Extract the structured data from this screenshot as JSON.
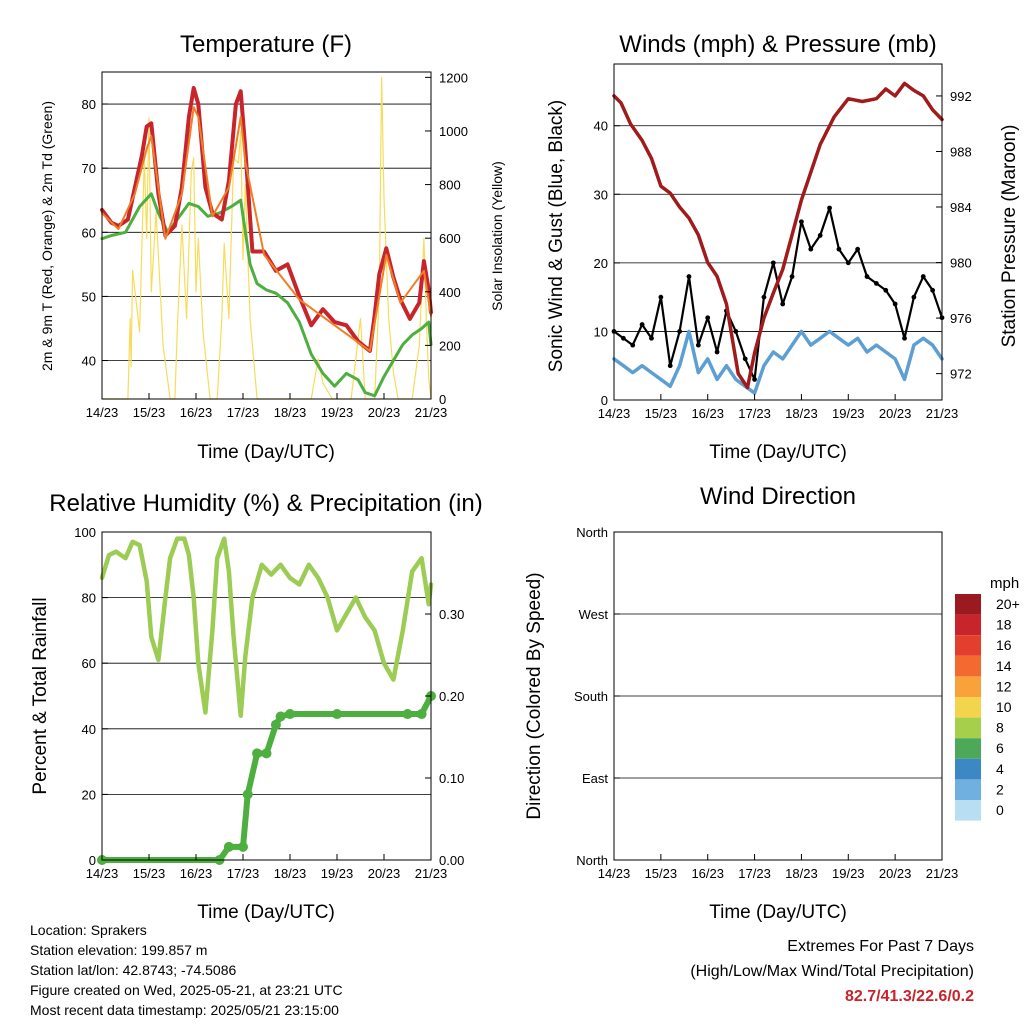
{
  "colors": {
    "temp_2m": "#c8242b",
    "temp_9m": "#f07e26",
    "dewpoint": "#4caf3f",
    "solar": "#f7dc5a",
    "wind": "#5d9fd3",
    "gust": "#000000",
    "pressure": "#a01c1c",
    "rh": "#9ccc54",
    "precip": "#4caf3f",
    "extremes_value": "#c8242b"
  },
  "info": {
    "location": "Location: Sprakers",
    "elevation": "Station elevation: 199.857 m",
    "latlon": "Station lat/lon: 42.8743; -74.5086",
    "created": "Figure created on Wed, 2025-05-21, at 23:21 UTC",
    "recent": "Most recent data timestamp: 2025/05/21 23:15:00"
  },
  "extremes": {
    "title": "Extremes For Past 7 Days",
    "subtitle": "(High/Low/Max Wind/Total Precipitation)",
    "values": "82.7/41.3/22.6/0.2"
  },
  "chart_data": [
    {
      "id": "temperature",
      "type": "line",
      "title": "Temperature (F)",
      "xlabel": "Time (Day/UTC)",
      "ylabel": "2m & 9m T (Red, Orange) & 2m Td (Green)",
      "ylabel_right": "Solar Insolation (Yellow)",
      "x_ticks": [
        "14/23",
        "15/23",
        "16/23",
        "17/23",
        "18/23",
        "19/23",
        "20/23",
        "21/23"
      ],
      "xlim": [
        0,
        7
      ],
      "ylim": [
        34,
        85
      ],
      "y_ticks": [
        40,
        50,
        60,
        70,
        80
      ],
      "y2lim": [
        0,
        1220
      ],
      "y2_ticks": [
        0,
        200,
        400,
        600,
        800,
        1000,
        1200
      ],
      "grid": "horizontal",
      "series": [
        {
          "key": "temp_2m",
          "x": [
            0,
            0.2,
            0.35,
            0.55,
            0.7,
            0.85,
            0.95,
            1.05,
            1.2,
            1.35,
            1.55,
            1.7,
            1.85,
            1.95,
            2.05,
            2.2,
            2.35,
            2.55,
            2.7,
            2.85,
            2.95,
            3.05,
            3.2,
            3.45,
            3.7,
            3.95,
            4.2,
            4.45,
            4.7,
            4.95,
            5.2,
            5.45,
            5.7,
            5.8,
            5.9,
            6.05,
            6.2,
            6.35,
            6.55,
            6.75,
            6.85,
            6.95,
            7
          ],
          "y": [
            63.5,
            61.5,
            61,
            62,
            67,
            72,
            76.5,
            77,
            66,
            59.5,
            61,
            67,
            78,
            82.5,
            80,
            67,
            63,
            62,
            68,
            80,
            82,
            73,
            57,
            57,
            54,
            55,
            50,
            45.5,
            48,
            46,
            45.5,
            43,
            41.5,
            47,
            53.5,
            57.5,
            53,
            49.5,
            46.5,
            49,
            55.5,
            51,
            47.5
          ]
        },
        {
          "key": "temp_9m",
          "x": [
            0,
            0.35,
            0.7,
            0.95,
            1.05,
            1.35,
            1.7,
            1.95,
            2.05,
            2.35,
            2.7,
            2.95,
            3.05,
            3.45,
            4.2,
            4.95,
            5.7,
            6.05,
            6.35,
            6.85,
            7
          ],
          "y": [
            63,
            60.5,
            66,
            73,
            75,
            59,
            66,
            79.5,
            78,
            62.5,
            67,
            78,
            71,
            56.5,
            49.5,
            45.5,
            41.5,
            56.5,
            49,
            54,
            47
          ]
        },
        {
          "key": "dewpoint",
          "x": [
            0,
            0.2,
            0.5,
            0.8,
            1.05,
            1.2,
            1.4,
            1.6,
            1.85,
            2.05,
            2.25,
            2.5,
            2.75,
            2.95,
            3.15,
            3.3,
            3.5,
            3.7,
            3.95,
            4.2,
            4.45,
            4.7,
            4.95,
            5.2,
            5.45,
            5.6,
            5.8,
            6,
            6.2,
            6.4,
            6.6,
            6.8,
            6.95,
            7
          ],
          "y": [
            59,
            59.5,
            60,
            64,
            66,
            63,
            60,
            62,
            64.5,
            64,
            62.5,
            63,
            64,
            65,
            55,
            52,
            51,
            50.5,
            49,
            46,
            41,
            38,
            36,
            38,
            37,
            35,
            34.5,
            37.5,
            40,
            42.5,
            44,
            45,
            46,
            42.5
          ]
        },
        {
          "key": "solar",
          "x": [
            0,
            0.55,
            0.6,
            0.62,
            0.65,
            0.8,
            0.9,
            0.95,
            1.0,
            1.05,
            1.15,
            1.3,
            1.45,
            1.55,
            1.6,
            1.7,
            1.8,
            1.9,
            1.95,
            2.0,
            2.05,
            2.15,
            2.3,
            2.45,
            2.55,
            2.6,
            2.7,
            2.8,
            2.9,
            2.95,
            3.0,
            3.05,
            3.15,
            3.3,
            3.45,
            4.45,
            4.6,
            4.7,
            4.9,
            5.1,
            5.3,
            5.5,
            5.6,
            5.8,
            5.9,
            5.95,
            6.0,
            6.1,
            6.2,
            6.3,
            6.6,
            6.75,
            6.85,
            6.9,
            6.95,
            7
          ],
          "y": [
            0,
            0,
            300,
            120,
            480,
            250,
            900,
            600,
            1050,
            400,
            700,
            200,
            0,
            0,
            250,
            650,
            300,
            850,
            900,
            400,
            600,
            250,
            0,
            0,
            300,
            580,
            300,
            900,
            880,
            1000,
            520,
            800,
            300,
            0,
            0,
            0,
            150,
            60,
            0,
            0,
            0,
            300,
            0,
            0,
            400,
            1200,
            750,
            300,
            100,
            0,
            0,
            200,
            600,
            300,
            80,
            0
          ]
        }
      ]
    },
    {
      "id": "winds",
      "type": "line",
      "title": "Winds (mph) & Pressure (mb)",
      "xlabel": "Time (Day/UTC)",
      "ylabel": "Sonic Wind & Gust (Blue, Black)",
      "ylabel_right": "Station Pressure (Maroon)",
      "x_ticks": [
        "14/23",
        "15/23",
        "16/23",
        "17/23",
        "18/23",
        "19/23",
        "20/23",
        "21/23"
      ],
      "xlim": [
        0,
        7
      ],
      "ylim": [
        0,
        49
      ],
      "y_ticks": [
        0,
        10,
        20,
        30,
        40
      ],
      "y2lim": [
        970.1,
        994.3
      ],
      "y2_ticks": [
        972,
        976,
        980,
        984,
        988,
        992
      ],
      "grid": "horizontal",
      "series": [
        {
          "key": "pressure",
          "x": [
            0,
            0.15,
            0.35,
            0.6,
            0.8,
            1,
            1.2,
            1.4,
            1.6,
            1.8,
            2,
            2.2,
            2.4,
            2.55,
            2.65,
            2.75,
            2.85,
            3,
            3.2,
            3.4,
            3.6,
            3.8,
            4,
            4.2,
            4.4,
            4.7,
            5,
            5.3,
            5.6,
            5.8,
            6,
            6.2,
            6.4,
            6.6,
            6.8,
            7
          ],
          "y": [
            992,
            991.5,
            990,
            988.8,
            987.5,
            985.5,
            985,
            984,
            983.2,
            982,
            980,
            979,
            977,
            974,
            972,
            971.5,
            971,
            973.5,
            976,
            977.8,
            979.5,
            982,
            984.5,
            986.5,
            988.5,
            990.5,
            991.8,
            991.6,
            991.8,
            992.5,
            992,
            992.9,
            992.4,
            992,
            991,
            990.3
          ]
        },
        {
          "key": "wind",
          "x": [
            0,
            0.2,
            0.4,
            0.6,
            0.8,
            1,
            1.2,
            1.4,
            1.6,
            1.8,
            2,
            2.2,
            2.4,
            2.6,
            2.8,
            3,
            3.2,
            3.4,
            3.6,
            3.8,
            4,
            4.2,
            4.4,
            4.6,
            4.8,
            5,
            5.2,
            5.4,
            5.6,
            5.8,
            6,
            6.2,
            6.4,
            6.6,
            6.8,
            7
          ],
          "y": [
            6,
            5,
            4,
            5,
            4,
            3,
            2,
            5,
            10,
            4,
            6,
            3,
            5,
            3,
            2,
            1,
            5,
            7,
            6,
            8,
            10,
            8,
            9,
            10,
            9,
            8,
            9,
            7,
            8,
            7,
            6,
            3,
            8,
            9,
            8,
            6
          ]
        },
        {
          "key": "gust",
          "x": [
            0,
            0.2,
            0.4,
            0.6,
            0.8,
            1,
            1.2,
            1.4,
            1.6,
            1.8,
            2,
            2.2,
            2.4,
            2.6,
            2.8,
            3,
            3.2,
            3.4,
            3.6,
            3.8,
            4,
            4.2,
            4.4,
            4.6,
            4.8,
            5,
            5.2,
            5.4,
            5.6,
            5.8,
            6,
            6.2,
            6.4,
            6.6,
            6.8,
            7
          ],
          "y": [
            10,
            9,
            8,
            11,
            9,
            15,
            5,
            10,
            18,
            8,
            12,
            7,
            13,
            10,
            6,
            3,
            15,
            20,
            14,
            18,
            26,
            22,
            24,
            28,
            22,
            20,
            22,
            18,
            17,
            16,
            14,
            9,
            15,
            18,
            16,
            12
          ]
        }
      ]
    },
    {
      "id": "humidity",
      "type": "line",
      "title": "Relative Humidity (%) & Precipitation (in)",
      "xlabel": "Time (Day/UTC)",
      "ylabel": "Percent & Total Rainfall",
      "x_ticks": [
        "14/23",
        "15/23",
        "16/23",
        "17/23",
        "18/23",
        "19/23",
        "20/23",
        "21/23"
      ],
      "xlim": [
        0,
        7
      ],
      "ylim": [
        0,
        100
      ],
      "y_ticks": [
        0,
        20,
        40,
        60,
        80,
        100
      ],
      "y2lim": [
        0,
        0.4
      ],
      "y2_ticks": [
        "0.00",
        "0.10",
        "0.20",
        "0.30"
      ],
      "grid": "horizontal",
      "series": [
        {
          "key": "rh",
          "x": [
            0,
            0.15,
            0.3,
            0.5,
            0.65,
            0.8,
            0.95,
            1.05,
            1.2,
            1.35,
            1.45,
            1.6,
            1.75,
            1.85,
            1.95,
            2.05,
            2.2,
            2.35,
            2.45,
            2.6,
            2.7,
            2.8,
            2.95,
            3.05,
            3.2,
            3.4,
            3.6,
            3.8,
            4,
            4.2,
            4.4,
            4.6,
            4.8,
            5,
            5.2,
            5.4,
            5.6,
            5.8,
            6,
            6.2,
            6.4,
            6.6,
            6.8,
            6.95,
            7
          ],
          "y": [
            86,
            93,
            94,
            92,
            97,
            96,
            85,
            68,
            61,
            80,
            92,
            98,
            98,
            93,
            80,
            60,
            45,
            70,
            92,
            98,
            88,
            68,
            44,
            62,
            80,
            90,
            87,
            90,
            86,
            84,
            90,
            86,
            80,
            70,
            75,
            80,
            74,
            70,
            60,
            55,
            70,
            88,
            92,
            78,
            84
          ]
        },
        {
          "key": "precip",
          "x": [
            0,
            2.5,
            2.7,
            3.0,
            3.1,
            3.3,
            3.5,
            3.7,
            3.8,
            4.0,
            5.0,
            6.5,
            6.8,
            7
          ],
          "y": [
            0,
            0,
            0.016,
            0.016,
            0.08,
            0.13,
            0.13,
            0.165,
            0.175,
            0.178,
            0.178,
            0.178,
            0.178,
            0.2
          ]
        }
      ]
    },
    {
      "id": "direction",
      "type": "scatter",
      "title": "Wind Direction",
      "xlabel": "Time (Day/UTC)",
      "ylabel": "Direction (Colored By Speed)",
      "x_ticks": [
        "14/23",
        "15/23",
        "16/23",
        "17/23",
        "18/23",
        "19/23",
        "20/23",
        "21/23"
      ],
      "xlim": [
        0,
        7
      ],
      "ylim": [
        0,
        360
      ],
      "y_ticks": [
        "North",
        "East",
        "South",
        "West",
        "North"
      ],
      "grid": "horizontal",
      "legend_title": "mph",
      "legend_labels": [
        "20+",
        "18",
        "16",
        "14",
        "12",
        "10",
        "8",
        "6",
        "4",
        "2",
        "0"
      ],
      "legend_colors": [
        "#9a1a1f",
        "#c8242b",
        "#e43e2f",
        "#f26a2f",
        "#f9a13b",
        "#f4d44c",
        "#a6cf4c",
        "#4ea85a",
        "#3c88c4",
        "#6fb0e0",
        "#b7def3"
      ]
    }
  ]
}
